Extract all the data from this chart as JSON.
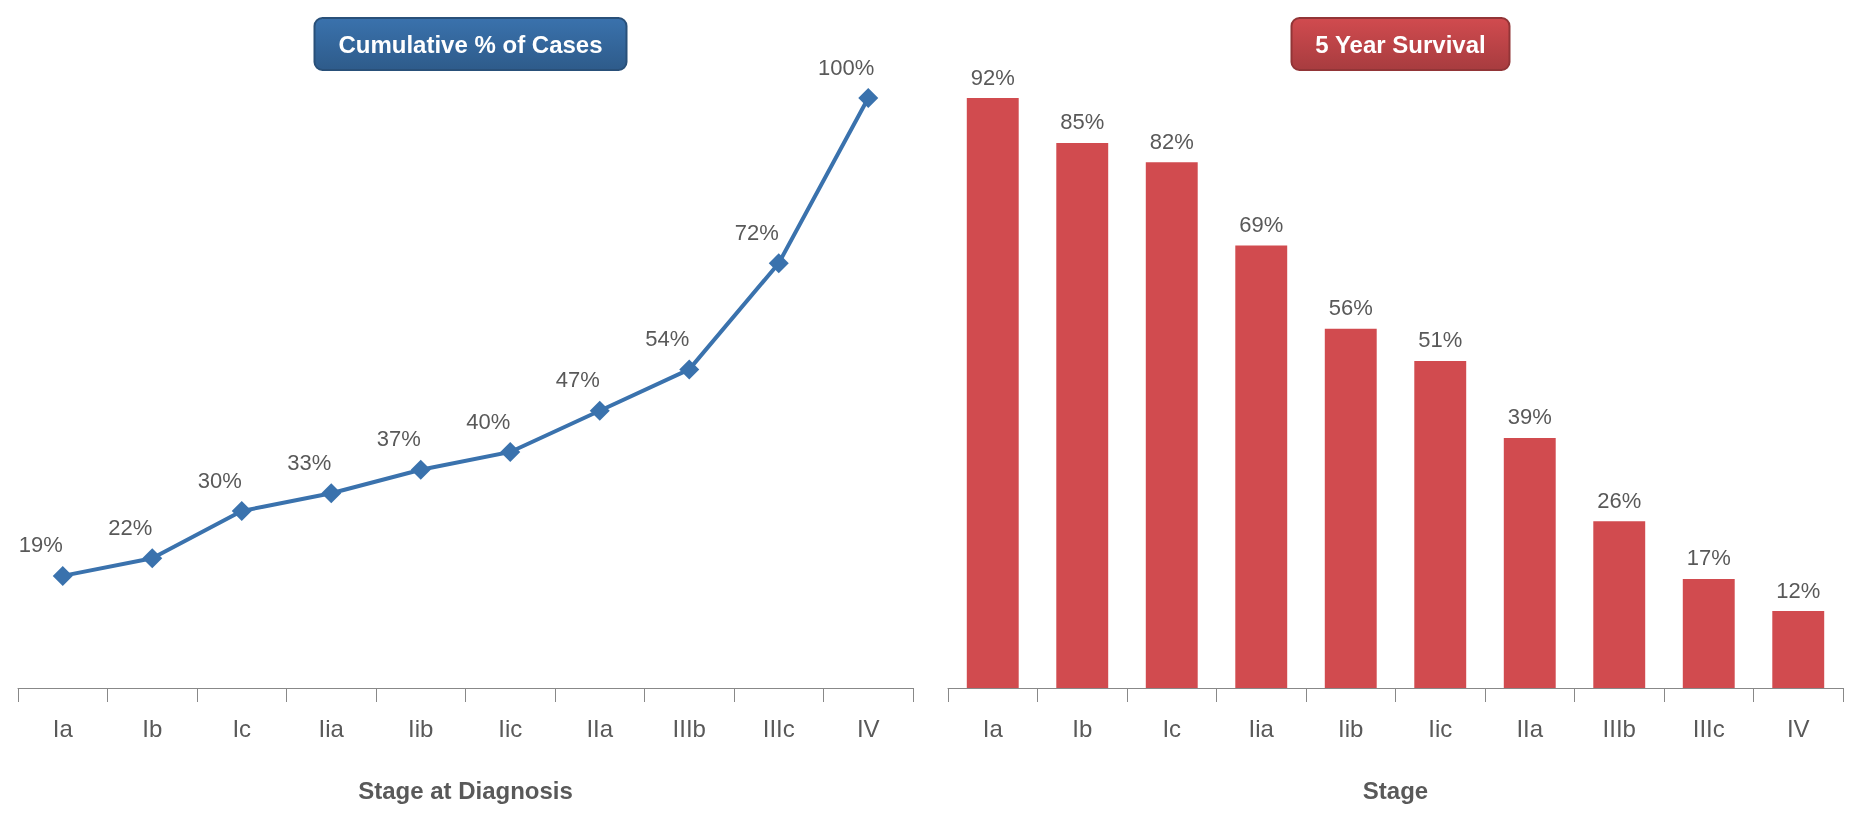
{
  "chart_data": [
    {
      "type": "line",
      "title": "Cumulative % of Cases",
      "xlabel": "Stage at Diagnosis",
      "categories": [
        "Ia",
        "Ib",
        "Ic",
        "Iia",
        "Iib",
        "Iic",
        "IIa",
        "IIIb",
        "IIIc",
        "IV"
      ],
      "values": [
        19,
        22,
        30,
        33,
        37,
        40,
        47,
        54,
        72,
        100
      ],
      "value_labels": [
        "19%",
        "22%",
        "30%",
        "33%",
        "37%",
        "40%",
        "47%",
        "54%",
        "72%",
        "100%"
      ],
      "color": "#3a72ad",
      "marker": "diamond"
    },
    {
      "type": "bar",
      "title": "5 Year Survival",
      "xlabel": "Stage",
      "categories": [
        "Ia",
        "Ib",
        "Ic",
        "Iia",
        "Iib",
        "Iic",
        "IIa",
        "IIIb",
        "IIIc",
        "IV"
      ],
      "values": [
        92,
        85,
        82,
        69,
        56,
        51,
        39,
        26,
        17,
        12
      ],
      "value_labels": [
        "92%",
        "85%",
        "82%",
        "69%",
        "56%",
        "51%",
        "39%",
        "26%",
        "17%",
        "12%"
      ],
      "color": "#d14b4f"
    }
  ]
}
